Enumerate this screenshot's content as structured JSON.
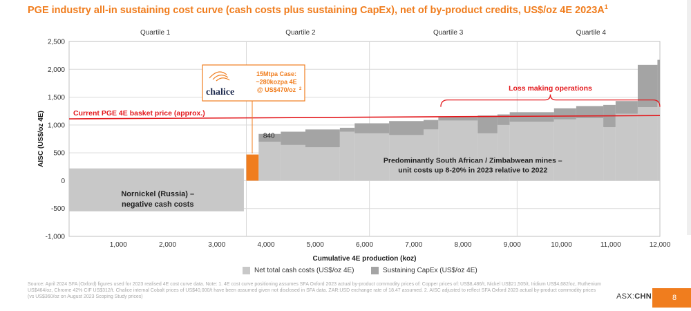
{
  "title": {
    "text": "PGE industry all-in sustaining cost curve (cash costs plus sustaining CapEx), net of by-product credits, US$/oz 4E 2023A",
    "sup": "1"
  },
  "colors": {
    "cash": "#c8c8c8",
    "capex": "#a4a4a4",
    "chalice": "#f07d1e",
    "basket": "#e3171b",
    "loss": "#e3171b",
    "callout": "#f07d1e"
  },
  "chart_data": {
    "type": "bar",
    "subtype": "cost-curve",
    "xlabel": "Cumulative 4E production (koz)",
    "ylabel": "AISC (US$/oz 4E)",
    "xlim": [
      0,
      12000
    ],
    "ylim": [
      -1000,
      2500
    ],
    "xticks": [
      "1,000",
      "2,000",
      "3,000",
      "4,000",
      "5,000",
      "6,000",
      "7,000",
      "8,000",
      "9,000",
      "10,000",
      "11,000",
      "12,000"
    ],
    "xtick_values": [
      1000,
      2000,
      3000,
      4000,
      5000,
      6000,
      7000,
      8000,
      9000,
      10000,
      11000,
      12000
    ],
    "yticks": [
      "2,500",
      "2,000",
      "1,500",
      "1,000",
      "500",
      "0",
      "-500",
      "-1,000"
    ],
    "ytick_values": [
      2500,
      2000,
      1500,
      1000,
      500,
      0,
      -500,
      -1000
    ],
    "grid": "horizontal",
    "series": [
      {
        "name": "Net total cash costs (US$/oz 4E)"
      },
      {
        "name": "Sustaining CapEx (US$/oz 4E)"
      }
    ],
    "segments": [
      {
        "x0": 0,
        "x1": 3550,
        "cash_low": -550,
        "cash_high": 220,
        "capex": 0
      },
      {
        "x0": 3600,
        "x1": 3850,
        "cash_low": 0,
        "cash_high": 470,
        "capex": 0,
        "highlight": "chalice"
      },
      {
        "x0": 3850,
        "x1": 4300,
        "cash_low": 0,
        "cash_high": 700,
        "capex": 140
      },
      {
        "x0": 4300,
        "x1": 4800,
        "cash_low": 0,
        "cash_high": 640,
        "capex": 240
      },
      {
        "x0": 4800,
        "x1": 5500,
        "cash_low": 0,
        "cash_high": 600,
        "capex": 320
      },
      {
        "x0": 5500,
        "x1": 5800,
        "cash_low": 0,
        "cash_high": 880,
        "capex": 70
      },
      {
        "x0": 5800,
        "x1": 6500,
        "cash_low": 0,
        "cash_high": 850,
        "capex": 180
      },
      {
        "x0": 6500,
        "x1": 7200,
        "cash_low": 0,
        "cash_high": 820,
        "capex": 250
      },
      {
        "x0": 7200,
        "x1": 7500,
        "cash_low": 0,
        "cash_high": 920,
        "capex": 170
      },
      {
        "x0": 7500,
        "x1": 8300,
        "cash_low": 0,
        "cash_high": 1080,
        "capex": 60
      },
      {
        "x0": 8300,
        "x1": 8700,
        "cash_low": 0,
        "cash_high": 850,
        "capex": 320
      },
      {
        "x0": 8700,
        "x1": 8950,
        "cash_low": 0,
        "cash_high": 1000,
        "capex": 190
      },
      {
        "x0": 8950,
        "x1": 9850,
        "cash_low": 0,
        "cash_high": 1060,
        "capex": 170
      },
      {
        "x0": 9850,
        "x1": 10300,
        "cash_low": 0,
        "cash_high": 1100,
        "capex": 200
      },
      {
        "x0": 10300,
        "x1": 10850,
        "cash_low": 0,
        "cash_high": 1120,
        "capex": 220
      },
      {
        "x0": 10850,
        "x1": 11100,
        "cash_low": 0,
        "cash_high": 960,
        "capex": 400
      },
      {
        "x0": 11100,
        "x1": 11550,
        "cash_low": 0,
        "cash_high": 1200,
        "capex": 230
      },
      {
        "x0": 11550,
        "x1": 11950,
        "cash_low": 0,
        "cash_high": 1320,
        "capex": 760
      },
      {
        "x0": 11950,
        "x1": 12000,
        "cash_low": 0,
        "cash_high": 1400,
        "capex": 770
      }
    ],
    "basket_line": {
      "label": "Current PGE 4E basket price (approx.)",
      "y0": 1110,
      "y1": 1170
    },
    "quartiles": [
      {
        "label": "Quartile 1",
        "x": 1750
      },
      {
        "label": "Quartile 2",
        "x": 4700
      },
      {
        "label": "Quartile 3",
        "x": 7700
      },
      {
        "label": "Quartile 4",
        "x": 10600
      }
    ],
    "quartile_dividers": [
      3600,
      6100,
      9100
    ],
    "annotations": {
      "value_label": {
        "text": "840",
        "x": 3900,
        "y": 870
      },
      "loss_making": {
        "text": "Loss making operations",
        "x0": 7550,
        "x1": 12000,
        "y": 1450,
        "label_y": 1670
      },
      "nornickel": {
        "lines": [
          "Nornickel (Russia) –",
          "negative cash costs"
        ],
        "x": 1800,
        "y": -280
      },
      "south_africa": {
        "lines": [
          "Predominantly South African / Zimbabwean mines –",
          "unit costs up 8-20% in 2023 relative to 2022"
        ],
        "x": 8200,
        "y": 320
      }
    },
    "callout": {
      "logo_text": "chalice",
      "lines": [
        "15Mtpa Case:",
        "~280kozpa 4E",
        "@ US$470/oz"
      ],
      "sup": "2"
    }
  },
  "footer": {
    "source": "Source: April 2024 SFA (Oxford) figures used for 2023 realised 4E cost curve data. Note: 1. 4E cost curve positioning assumes SFA Oxford 2023 actual by-product commodity prices of: Copper prices of: US$8,486/t, Nickel US$21,505/t, Iridium US$4,682/oz, Ruthenium US$464/oz, Chrome 42% CIF US$312/t. Chalice internal Cobalt prices of US$40,000/t have been assumed given not disclosed in SFA data. ZAR:USD exchange rate of 18.47 assumed. 2. AISC adjusted to reflect SFA Oxford 2023 actual by-product commodity prices (vs US$360/oz on August 2023 Scoping Study prices)",
    "asx_prefix": "ASX:",
    "asx_code": "CHN",
    "page": "8"
  }
}
